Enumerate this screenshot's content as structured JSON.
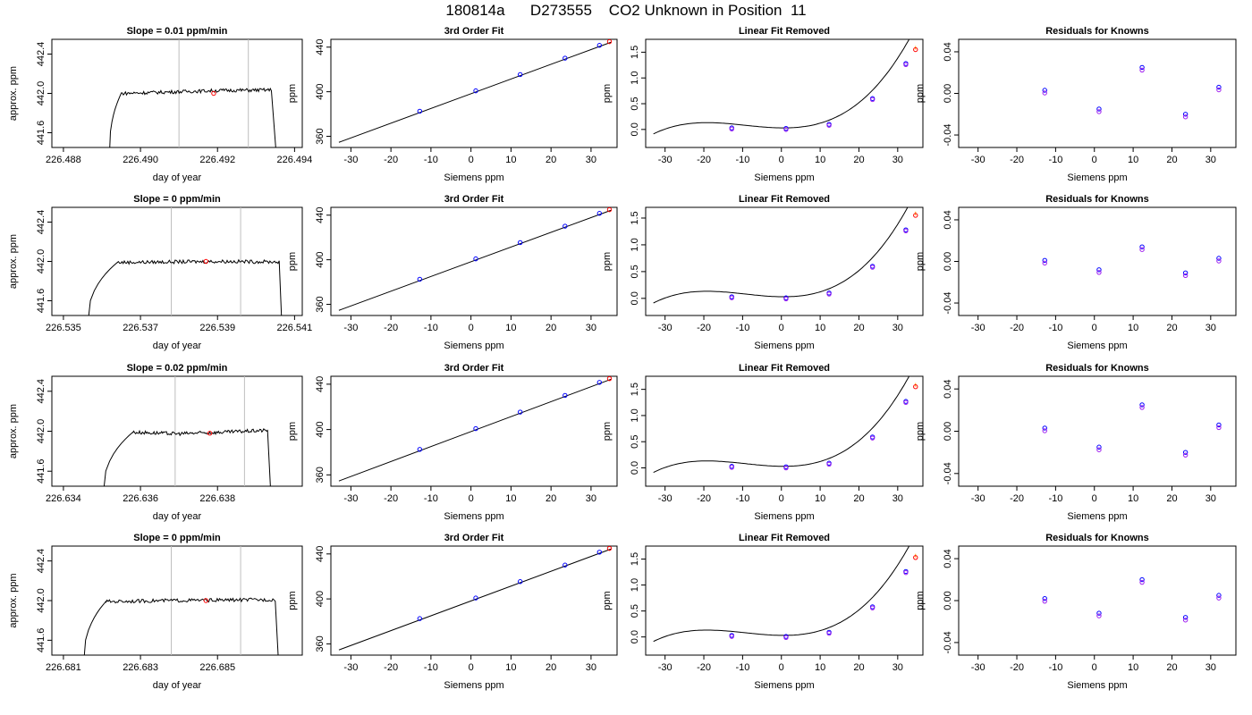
{
  "page": {
    "title": "180814a      D273555    CO2 Unknown in Position  11"
  },
  "chart_data": [
    {
      "row": 1,
      "panel": "time-series",
      "type": "line",
      "title": "Slope =  0.01  ppm/min",
      "xlabel": "day of year",
      "ylabel": "approx. ppm",
      "xlim": [
        226.4877,
        226.4942
      ],
      "ylim": [
        441.45,
        442.55
      ],
      "xticks": [
        "226.488",
        "226.490",
        "226.492",
        "226.494"
      ],
      "xtick_values": [
        226.488,
        226.49,
        226.492,
        226.494
      ],
      "yticks": [
        "441.6",
        "442.0",
        "442.4"
      ],
      "ytick_values": [
        441.6,
        442.0,
        442.4
      ],
      "x_start": 226.48918,
      "x_end": 226.49355,
      "plateau_start": 226.4895,
      "plateau_end": 226.4934,
      "plateau_levels": [
        442.0,
        442.015,
        442.03,
        442.035
      ],
      "vlines": [
        226.491,
        226.4928
      ],
      "marker": {
        "x": 226.4919,
        "y": 442.0,
        "color": "#ff0000"
      }
    },
    {
      "row": 1,
      "panel": "fit",
      "type": "scatter",
      "title": "3rd Order Fit",
      "xlabel": "Siemens ppm",
      "ylabel": "ppm",
      "xlim": [
        -35,
        36.5
      ],
      "ylim": [
        350,
        447
      ],
      "xticks": [
        "-30",
        "-20",
        "-10",
        "0",
        "10",
        "20",
        "30"
      ],
      "xtick_values": [
        -30,
        -20,
        -10,
        0,
        10,
        20,
        30
      ],
      "yticks": [
        "360",
        "400",
        "440"
      ],
      "ytick_values": [
        360,
        400,
        440
      ],
      "line": {
        "x": [
          -33,
          35
        ],
        "y": [
          354.6,
          444.4
        ]
      },
      "points": [
        {
          "x": -12.8,
          "y": 382.5
        },
        {
          "x": 1.2,
          "y": 400.8
        },
        {
          "x": 12.3,
          "y": 415.4
        },
        {
          "x": 23.5,
          "y": 430.1
        },
        {
          "x": 32.1,
          "y": 441.6
        }
      ],
      "unknown": {
        "x": 34.6,
        "y": 444.9
      }
    },
    {
      "row": 1,
      "panel": "linear-removed",
      "type": "scatter",
      "title": "Linear Fit Removed",
      "xlabel": "Siemens ppm",
      "ylabel": "ppm",
      "xlim": [
        -35,
        36.5
      ],
      "ylim": [
        -0.35,
        1.75
      ],
      "xticks": [
        "-30",
        "-20",
        "-10",
        "0",
        "10",
        "20",
        "30"
      ],
      "xtick_values": [
        -30,
        -20,
        -10,
        0,
        10,
        20,
        30
      ],
      "yticks": [
        "0.0",
        "0.5",
        "1.0",
        "1.5"
      ],
      "ytick_values": [
        0,
        0.5,
        1.0,
        1.5
      ],
      "curve": {
        "x0": -33,
        "x1": 35,
        "a": 0.12,
        "b": 0.08,
        "c": 0.0011,
        "d": 3.65e-05
      },
      "points": [
        {
          "x": -12.8,
          "y": 0.03
        },
        {
          "x": 1.2,
          "y": 0.02
        },
        {
          "x": 12.3,
          "y": 0.1
        },
        {
          "x": 23.5,
          "y": 0.6
        },
        {
          "x": 32.1,
          "y": 1.28
        }
      ],
      "unknown": {
        "x": 34.6,
        "y": 1.55
      },
      "unknown_error_top": 1.62
    },
    {
      "row": 1,
      "panel": "residuals",
      "type": "scatter",
      "title": "Residuals for Knowns",
      "xlabel": "Siemens ppm",
      "ylabel": "ppm",
      "xlim": [
        -35,
        36.5
      ],
      "ylim": [
        -0.052,
        0.052
      ],
      "xticks": [
        "-30",
        "-20",
        "-10",
        "0",
        "10",
        "20",
        "30"
      ],
      "xtick_values": [
        -30,
        -20,
        -10,
        0,
        10,
        20,
        30
      ],
      "yticks": [
        "-0.04",
        "0.00",
        "0.04"
      ],
      "ytick_values": [
        -0.04,
        0.0,
        0.04
      ],
      "points": [
        {
          "x": -12.8,
          "y": 0.003
        },
        {
          "x": 1.2,
          "y": -0.015
        },
        {
          "x": 12.3,
          "y": 0.025
        },
        {
          "x": 23.5,
          "y": -0.02
        },
        {
          "x": 32.1,
          "y": 0.006
        }
      ]
    },
    {
      "row": 2,
      "panel": "time-series",
      "type": "line",
      "title": "Slope =  0  ppm/min",
      "xlabel": "day of year",
      "ylabel": "approx. ppm",
      "xlim": [
        226.5347,
        226.5412
      ],
      "ylim": [
        441.45,
        442.55
      ],
      "xticks": [
        "226.535",
        "226.537",
        "226.539",
        "226.541"
      ],
      "xtick_values": [
        226.535,
        226.537,
        226.539,
        226.541
      ],
      "yticks": [
        "441.6",
        "442.0",
        "442.4"
      ],
      "ytick_values": [
        441.6,
        442.0,
        442.4
      ],
      "x_start": 226.5356,
      "x_end": 226.54068,
      "plateau_start": 226.5364,
      "plateau_end": 226.5406,
      "plateau_levels": [
        441.99,
        441.995,
        442.0,
        441.995
      ],
      "vlines": [
        226.5378,
        226.5396
      ],
      "marker": {
        "x": 226.5387,
        "y": 442.0,
        "color": "#ff0000"
      }
    },
    {
      "row": 2,
      "panel": "fit",
      "type": "scatter",
      "title": "3rd Order Fit",
      "xlabel": "Siemens ppm",
      "ylabel": "ppm",
      "xlim": [
        -35,
        36.5
      ],
      "ylim": [
        350,
        447
      ],
      "xticks": [
        "-30",
        "-20",
        "-10",
        "0",
        "10",
        "20",
        "30"
      ],
      "xtick_values": [
        -30,
        -20,
        -10,
        0,
        10,
        20,
        30
      ],
      "yticks": [
        "360",
        "400",
        "440"
      ],
      "ytick_values": [
        360,
        400,
        440
      ],
      "line": {
        "x": [
          -33,
          35
        ],
        "y": [
          354.6,
          444.4
        ]
      },
      "points": [
        {
          "x": -12.8,
          "y": 382.5
        },
        {
          "x": 1.2,
          "y": 400.8
        },
        {
          "x": 12.3,
          "y": 415.4
        },
        {
          "x": 23.5,
          "y": 430.1
        },
        {
          "x": 32.1,
          "y": 441.6
        }
      ],
      "unknown": {
        "x": 34.6,
        "y": 444.9
      }
    },
    {
      "row": 2,
      "panel": "linear-removed",
      "type": "scatter",
      "title": "Linear Fit Removed",
      "xlabel": "Siemens ppm",
      "ylabel": "ppm",
      "xlim": [
        -35,
        36.5
      ],
      "ylim": [
        -0.32,
        1.7
      ],
      "xticks": [
        "-30",
        "-20",
        "-10",
        "0",
        "10",
        "20",
        "30"
      ],
      "xtick_values": [
        -30,
        -20,
        -10,
        0,
        10,
        20,
        30
      ],
      "yticks": [
        "0.0",
        "0.5",
        "1.0",
        "1.5"
      ],
      "ytick_values": [
        0,
        0.5,
        1.0,
        1.5
      ],
      "curve": {
        "x0": -33,
        "x1": 35,
        "a": 0.12,
        "b": 0.08,
        "c": 0.0011,
        "d": 3.65e-05
      },
      "points": [
        {
          "x": -12.8,
          "y": 0.03
        },
        {
          "x": 1.2,
          "y": 0.01
        },
        {
          "x": 12.3,
          "y": 0.1
        },
        {
          "x": 23.5,
          "y": 0.6
        },
        {
          "x": 32.1,
          "y": 1.28
        }
      ],
      "unknown": {
        "x": 34.6,
        "y": 1.55
      },
      "unknown_error_top": 1.62
    },
    {
      "row": 2,
      "panel": "residuals",
      "type": "scatter",
      "title": "Residuals for Knowns",
      "xlabel": "Siemens ppm",
      "ylabel": "ppm",
      "xlim": [
        -35,
        36.5
      ],
      "ylim": [
        -0.052,
        0.052
      ],
      "xticks": [
        "-30",
        "-20",
        "-10",
        "0",
        "10",
        "20",
        "30"
      ],
      "xtick_values": [
        -30,
        -20,
        -10,
        0,
        10,
        20,
        30
      ],
      "yticks": [
        "-0.04",
        "0.00",
        "0.04"
      ],
      "ytick_values": [
        -0.04,
        0.0,
        0.04
      ],
      "points": [
        {
          "x": -12.8,
          "y": 0.001
        },
        {
          "x": 1.2,
          "y": -0.008
        },
        {
          "x": 12.3,
          "y": 0.014
        },
        {
          "x": 23.5,
          "y": -0.011
        },
        {
          "x": 32.1,
          "y": 0.003
        }
      ]
    },
    {
      "row": 3,
      "panel": "time-series",
      "type": "line",
      "title": "Slope =  0.02  ppm/min",
      "xlabel": "day of year",
      "ylabel": "approx. ppm",
      "xlim": [
        226.6337,
        226.6402
      ],
      "ylim": [
        441.45,
        442.55
      ],
      "xticks": [
        "226.634",
        "226.636",
        "226.638"
      ],
      "xtick_values": [
        226.634,
        226.636,
        226.638
      ],
      "yticks": [
        "441.6",
        "442.0",
        "442.4"
      ],
      "ytick_values": [
        441.6,
        442.0,
        442.4
      ],
      "x_start": 226.635,
      "x_end": 226.6394,
      "plateau_start": 226.6358,
      "plateau_end": 226.6393,
      "plateau_levels": [
        441.99,
        441.975,
        441.99,
        442.01
      ],
      "vlines": [
        226.6369,
        226.6387
      ],
      "marker": {
        "x": 226.6378,
        "y": 441.98,
        "color": "#ff0000"
      }
    },
    {
      "row": 3,
      "panel": "fit",
      "type": "scatter",
      "title": "3rd Order Fit",
      "xlabel": "Siemens ppm",
      "ylabel": "ppm",
      "xlim": [
        -35,
        36.5
      ],
      "ylim": [
        350,
        447
      ],
      "xticks": [
        "-30",
        "-20",
        "-10",
        "0",
        "10",
        "20",
        "30"
      ],
      "xtick_values": [
        -30,
        -20,
        -10,
        0,
        10,
        20,
        30
      ],
      "yticks": [
        "360",
        "400",
        "440"
      ],
      "ytick_values": [
        360,
        400,
        440
      ],
      "line": {
        "x": [
          -33,
          35
        ],
        "y": [
          354.6,
          444.4
        ]
      },
      "points": [
        {
          "x": -12.8,
          "y": 382.5
        },
        {
          "x": 1.2,
          "y": 400.8
        },
        {
          "x": 12.3,
          "y": 415.4
        },
        {
          "x": 23.5,
          "y": 430.1
        },
        {
          "x": 32.1,
          "y": 441.6
        }
      ],
      "unknown": {
        "x": 34.6,
        "y": 444.9
      }
    },
    {
      "row": 3,
      "panel": "linear-removed",
      "type": "scatter",
      "title": "Linear Fit Removed",
      "xlabel": "Siemens ppm",
      "ylabel": "ppm",
      "xlim": [
        -35,
        36.5
      ],
      "ylim": [
        -0.35,
        1.75
      ],
      "xticks": [
        "-30",
        "-20",
        "-10",
        "0",
        "10",
        "20",
        "30"
      ],
      "xtick_values": [
        -30,
        -20,
        -10,
        0,
        10,
        20,
        30
      ],
      "yticks": [
        "0.0",
        "0.5",
        "1.0",
        "1.5"
      ],
      "ytick_values": [
        0,
        0.5,
        1.0,
        1.5
      ],
      "curve": {
        "x0": -33,
        "x1": 35,
        "a": 0.12,
        "b": 0.08,
        "c": 0.0011,
        "d": 3.65e-05
      },
      "points": [
        {
          "x": -12.8,
          "y": 0.03
        },
        {
          "x": 1.2,
          "y": 0.02
        },
        {
          "x": 12.3,
          "y": 0.09
        },
        {
          "x": 23.5,
          "y": 0.59
        },
        {
          "x": 32.1,
          "y": 1.27
        }
      ],
      "unknown": {
        "x": 34.6,
        "y": 1.55
      },
      "unknown_error_top": 1.62
    },
    {
      "row": 3,
      "panel": "residuals",
      "type": "scatter",
      "title": "Residuals for Knowns",
      "xlabel": "Siemens ppm",
      "ylabel": "ppm",
      "xlim": [
        -35,
        36.5
      ],
      "ylim": [
        -0.052,
        0.052
      ],
      "xticks": [
        "-30",
        "-20",
        "-10",
        "0",
        "10",
        "20",
        "30"
      ],
      "xtick_values": [
        -30,
        -20,
        -10,
        0,
        10,
        20,
        30
      ],
      "yticks": [
        "-0.04",
        "0.00",
        "0.04"
      ],
      "ytick_values": [
        -0.04,
        0.0,
        0.04
      ],
      "points": [
        {
          "x": -12.8,
          "y": 0.003
        },
        {
          "x": 1.2,
          "y": -0.015
        },
        {
          "x": 12.3,
          "y": 0.025
        },
        {
          "x": 23.5,
          "y": -0.02
        },
        {
          "x": 32.1,
          "y": 0.006
        }
      ]
    },
    {
      "row": 4,
      "panel": "time-series",
      "type": "line",
      "title": "Slope =  0  ppm/min",
      "xlabel": "day of year",
      "ylabel": "approx. ppm",
      "xlim": [
        226.6807,
        226.6872
      ],
      "ylim": [
        441.45,
        442.55
      ],
      "xticks": [
        "226.681",
        "226.683",
        "226.685"
      ],
      "xtick_values": [
        226.681,
        226.683,
        226.685
      ],
      "yticks": [
        "441.6",
        "442.0",
        "442.4"
      ],
      "ytick_values": [
        441.6,
        442.0,
        442.4
      ],
      "x_start": 226.6815,
      "x_end": 226.6866,
      "plateau_start": 226.6821,
      "plateau_end": 226.6865,
      "plateau_levels": [
        441.99,
        442.0,
        442.005,
        442.01
      ],
      "vlines": [
        226.6838,
        226.6856
      ],
      "marker": {
        "x": 226.6847,
        "y": 442.0,
        "color": "#ff0000"
      }
    },
    {
      "row": 4,
      "panel": "fit",
      "type": "scatter",
      "title": "3rd Order Fit",
      "xlabel": "Siemens ppm",
      "ylabel": "ppm",
      "xlim": [
        -35,
        36.5
      ],
      "ylim": [
        350,
        447
      ],
      "xticks": [
        "-30",
        "-20",
        "-10",
        "0",
        "10",
        "20",
        "30"
      ],
      "xtick_values": [
        -30,
        -20,
        -10,
        0,
        10,
        20,
        30
      ],
      "yticks": [
        "360",
        "400",
        "440"
      ],
      "ytick_values": [
        360,
        400,
        440
      ],
      "line": {
        "x": [
          -33,
          35
        ],
        "y": [
          354.6,
          444.4
        ]
      },
      "points": [
        {
          "x": -12.8,
          "y": 382.5
        },
        {
          "x": 1.2,
          "y": 400.8
        },
        {
          "x": 12.3,
          "y": 415.4
        },
        {
          "x": 23.5,
          "y": 430.1
        },
        {
          "x": 32.1,
          "y": 441.6
        }
      ],
      "unknown": {
        "x": 34.6,
        "y": 444.9
      }
    },
    {
      "row": 4,
      "panel": "linear-removed",
      "type": "scatter",
      "title": "Linear Fit Removed",
      "xlabel": "Siemens ppm",
      "ylabel": "ppm",
      "xlim": [
        -35,
        36.5
      ],
      "ylim": [
        -0.35,
        1.75
      ],
      "xticks": [
        "-30",
        "-20",
        "-10",
        "0",
        "10",
        "20",
        "30"
      ],
      "xtick_values": [
        -30,
        -20,
        -10,
        0,
        10,
        20,
        30
      ],
      "yticks": [
        "0.0",
        "0.5",
        "1.0",
        "1.5"
      ],
      "ytick_values": [
        0,
        0.5,
        1.0,
        1.5
      ],
      "curve": {
        "x0": -33,
        "x1": 35,
        "a": 0.12,
        "b": 0.08,
        "c": 0.0011,
        "d": 3.65e-05
      },
      "points": [
        {
          "x": -12.8,
          "y": 0.03
        },
        {
          "x": 1.2,
          "y": 0.01
        },
        {
          "x": 12.3,
          "y": 0.09
        },
        {
          "x": 23.5,
          "y": 0.58
        },
        {
          "x": 32.1,
          "y": 1.26
        }
      ],
      "unknown": {
        "x": 34.6,
        "y": 1.53
      },
      "unknown_error_top": 1.6
    },
    {
      "row": 4,
      "panel": "residuals",
      "type": "scatter",
      "title": "Residuals for Knowns",
      "xlabel": "Siemens ppm",
      "ylabel": "ppm",
      "xlim": [
        -35,
        36.5
      ],
      "ylim": [
        -0.052,
        0.052
      ],
      "xticks": [
        "-30",
        "-20",
        "-10",
        "0",
        "10",
        "20",
        "30"
      ],
      "xtick_values": [
        -30,
        -20,
        -10,
        0,
        10,
        20,
        30
      ],
      "yticks": [
        "-0.04",
        "0.00",
        "0.04"
      ],
      "ytick_values": [
        -0.04,
        0.0,
        0.04
      ],
      "points": [
        {
          "x": -12.8,
          "y": 0.002
        },
        {
          "x": 1.2,
          "y": -0.012
        },
        {
          "x": 12.3,
          "y": 0.02
        },
        {
          "x": 23.5,
          "y": -0.016
        },
        {
          "x": 32.1,
          "y": 0.005
        }
      ]
    }
  ],
  "colors": {
    "known_point": "#0000ff",
    "overlay_point": "#a020f0",
    "unknown_point": "#ff0000",
    "unknown_error": "#ffa500",
    "window_line": "#bebebe",
    "axis": "#000000"
  }
}
